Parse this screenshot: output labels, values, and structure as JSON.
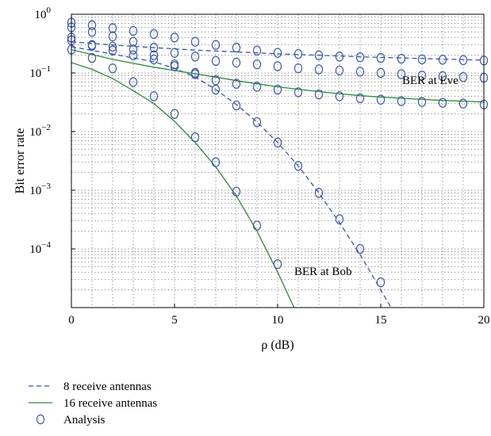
{
  "chart_data": {
    "type": "line",
    "title": "",
    "xlabel": "ρ (dB)",
    "ylabel": "Bit error rate",
    "x_scale": "linear",
    "y_scale": "log",
    "xlim": [
      0,
      20
    ],
    "ylim": [
      1e-05,
      1
    ],
    "grid": true,
    "x_ticks": [
      0,
      5,
      10,
      15,
      20
    ],
    "y_ticks": [
      {
        "value": 1,
        "base": "10",
        "exp": "0"
      },
      {
        "value": 0.1,
        "base": "10",
        "exp": "−1"
      },
      {
        "value": 0.01,
        "base": "10",
        "exp": "−2"
      },
      {
        "value": 0.001,
        "base": "10",
        "exp": "−3"
      },
      {
        "value": 0.0001,
        "base": "10",
        "exp": "−4"
      }
    ],
    "series": [
      {
        "name": "8 receive antennas",
        "style": "dashed",
        "color": "#3a57a8",
        "x": [
          0,
          2,
          4,
          6,
          8,
          10,
          12,
          14,
          16,
          18,
          20
        ],
        "y": [
          0.34,
          0.3,
          0.27,
          0.245,
          0.228,
          0.212,
          0.2,
          0.188,
          0.18,
          0.172,
          0.165
        ]
      },
      {
        "name": "8 receive antennas",
        "style": "dashed",
        "color": "#3a57a8",
        "x": [
          0,
          2,
          4,
          5,
          6,
          7,
          8,
          9,
          10,
          11,
          12,
          13,
          14,
          15,
          16
        ],
        "y": [
          0.28,
          0.21,
          0.155,
          0.12,
          0.085,
          0.052,
          0.029,
          0.0145,
          0.0065,
          0.0026,
          0.0009,
          0.00028,
          8e-05,
          2e-05,
          5e-06
        ]
      },
      {
        "name": "16 receive antennas",
        "style": "solid",
        "color": "#2e8b3a",
        "x": [
          0,
          2,
          4,
          6,
          8,
          10,
          12,
          14,
          16,
          18,
          20
        ],
        "y": [
          0.25,
          0.17,
          0.125,
          0.097,
          0.074,
          0.058,
          0.048,
          0.041,
          0.037,
          0.034,
          0.032
        ]
      },
      {
        "name": "16 receive antennas",
        "style": "solid",
        "color": "#2e8b3a",
        "x": [
          0,
          1,
          2,
          3,
          4,
          5,
          6,
          7,
          8,
          9,
          10,
          11
        ],
        "y": [
          0.15,
          0.115,
          0.08,
          0.05,
          0.03,
          0.015,
          0.0065,
          0.0025,
          0.0008,
          0.0002,
          4e-05,
          7e-06
        ]
      }
    ],
    "markers": {
      "name": "Analysis",
      "x": [
        0,
        1,
        2,
        3,
        4,
        5,
        6,
        7,
        8,
        9,
        10,
        11,
        12,
        13,
        14,
        15,
        16,
        17,
        18,
        19,
        20,
        0,
        1,
        2,
        3,
        4,
        5,
        6,
        7,
        8,
        9,
        10,
        11,
        12,
        13,
        14,
        15,
        16,
        17,
        18,
        19,
        20,
        0,
        1,
        2,
        3,
        4,
        5,
        6,
        7,
        8,
        9,
        10,
        11,
        12,
        13,
        14,
        15,
        16,
        17,
        18,
        19,
        20,
        0,
        1,
        2,
        3,
        4,
        5,
        6,
        7,
        8,
        9,
        10,
        11,
        12,
        13,
        14,
        15,
        0,
        1,
        2,
        3,
        4,
        5,
        6,
        7,
        8,
        9,
        10
      ],
      "y": [
        0.72,
        0.65,
        0.58,
        0.52,
        0.46,
        0.4,
        0.34,
        0.3,
        0.27,
        0.24,
        0.22,
        0.21,
        0.2,
        0.19,
        0.185,
        0.18,
        0.175,
        0.17,
        0.168,
        0.165,
        0.163,
        0.6,
        0.5,
        0.42,
        0.34,
        0.27,
        0.22,
        0.19,
        0.16,
        0.15,
        0.14,
        0.13,
        0.12,
        0.115,
        0.11,
        0.105,
        0.1,
        0.095,
        0.09,
        0.088,
        0.085,
        0.083,
        0.36,
        0.29,
        0.24,
        0.2,
        0.17,
        0.13,
        0.1,
        0.075,
        0.065,
        0.058,
        0.052,
        0.047,
        0.043,
        0.04,
        0.037,
        0.035,
        0.033,
        0.032,
        0.031,
        0.03,
        0.029,
        0.4,
        0.3,
        0.28,
        0.25,
        0.2,
        0.14,
        0.095,
        0.052,
        0.028,
        0.0145,
        0.0065,
        0.0026,
        0.0009,
        0.00032,
        0.0001,
        2.7e-05,
        0.25,
        0.18,
        0.12,
        0.07,
        0.04,
        0.02,
        0.008,
        0.003,
        0.00095,
        0.00025,
        5.5e-05
      ]
    },
    "annotations": [
      {
        "text": "BER at Eve",
        "x": 17.4,
        "y": 0.075
      },
      {
        "text": "BER at Bob",
        "x": 12.2,
        "y": 4.2e-05
      }
    ],
    "legend": {
      "position": "bottom-left",
      "entries": [
        {
          "label": "8 receive antennas",
          "style": "dashed",
          "color": "#3a57a8"
        },
        {
          "label": "16 receive antennas",
          "style": "solid",
          "color": "#2e8b3a"
        },
        {
          "label": "Analysis",
          "style": "marker",
          "color": "#3a57a8"
        }
      ]
    }
  }
}
